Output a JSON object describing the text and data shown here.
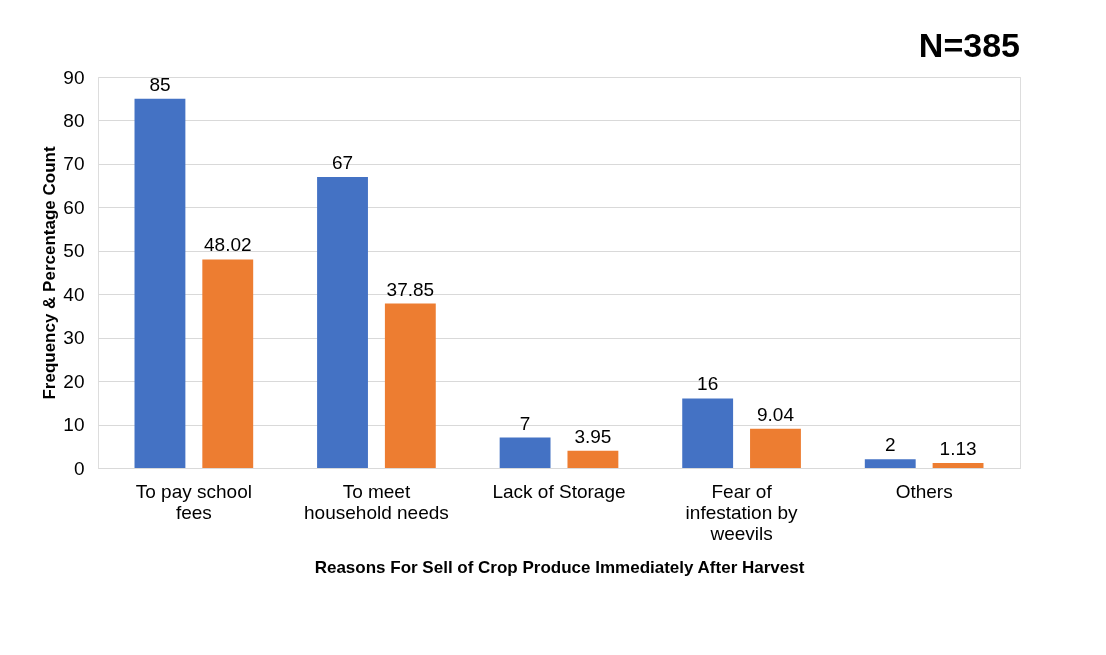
{
  "chart_data": {
    "type": "bar",
    "xlabel": "Reasons For Sell of Crop Produce Immediately After Harvest",
    "ylabel": "Frequency & Percentage Count",
    "annotations": [
      "N=385"
    ],
    "categories": [
      "To pay school fees",
      "To meet household needs",
      "Lack of Storage",
      "Fear of infestation by weevils",
      "Others"
    ],
    "series": [
      {
        "color": "#4472c4",
        "values": [
          85,
          67,
          7,
          16,
          2
        ]
      },
      {
        "color": "#ed7d31",
        "values": [
          48.02,
          37.85,
          3.95,
          9.04,
          1.13
        ]
      }
    ],
    "ylim": [
      0,
      90
    ],
    "yticks": [
      0,
      10,
      20,
      30,
      40,
      50,
      60,
      70,
      80,
      90
    ],
    "grid": "y",
    "data_labels": true,
    "legend": false
  }
}
